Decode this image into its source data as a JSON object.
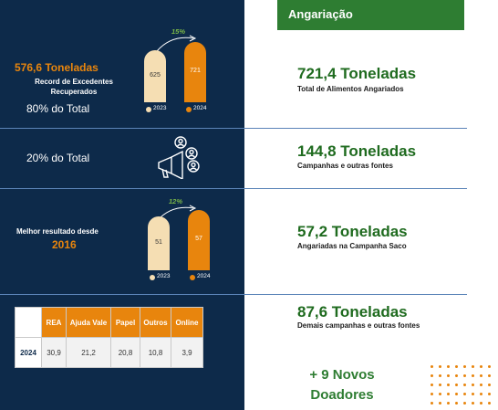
{
  "header": {
    "title": "Angariação",
    "bg": "#2e7d32"
  },
  "colors": {
    "navy": "#0d2a4a",
    "orange": "#e8850d",
    "cream": "#f5deb3",
    "green": "#1f6b1f"
  },
  "section1": {
    "headline": "576,6 Toneladas",
    "desc_line1": "Record de Excedentes",
    "desc_line2": "Recuperados",
    "share": "80% do Total",
    "chart": {
      "growth": "15%",
      "bars": [
        {
          "year": "2023",
          "value": 625
        },
        {
          "year": "2024",
          "value": 721
        }
      ]
    }
  },
  "section2": {
    "share": "20% do Total",
    "icon": "megaphone-people-icon"
  },
  "section3": {
    "line1": "Melhor resultado desde",
    "line2": "2016",
    "chart": {
      "growth": "12%",
      "bars": [
        {
          "year": "2023",
          "value": 51
        },
        {
          "year": "2024",
          "value": 57
        }
      ]
    }
  },
  "table": {
    "headers": [
      "REA",
      "Ajuda Vale",
      "Papel",
      "Outros",
      "Online"
    ],
    "row_label": "2024",
    "values": [
      "30,9",
      "21,2",
      "20,8",
      "10,8",
      "3,9"
    ]
  },
  "right": [
    {
      "value": "721,4 Toneladas",
      "label": "Total de Alimentos Angariados"
    },
    {
      "value": "144,8 Toneladas",
      "label": "Campanhas e outras fontes"
    },
    {
      "value": "57,2 Toneladas",
      "label": "Angariadas na Campanha Saco"
    },
    {
      "value": "87,6 Toneladas",
      "label": "Demais campanhas e outras fontes"
    }
  ],
  "donors": {
    "line1": "+ 9 Novos",
    "line2": "Doadores"
  }
}
